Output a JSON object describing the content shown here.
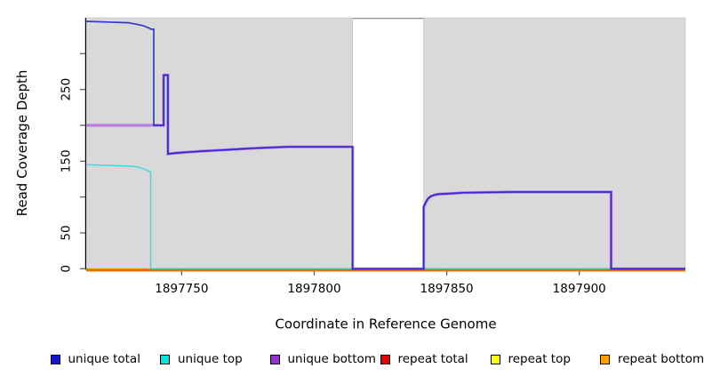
{
  "figure": {
    "xlabel": "Coordinate in Reference Genome",
    "ylabel": "Read Coverage Depth"
  },
  "legend": {
    "items": [
      {
        "label": "unique total",
        "color": "#1414CC"
      },
      {
        "label": "unique top",
        "color": "#00E5E5"
      },
      {
        "label": "unique bottom",
        "color": "#9A30D2"
      },
      {
        "label": "repeat total",
        "color": "#EE0000"
      },
      {
        "label": "repeat top",
        "color": "#FFFF00"
      },
      {
        "label": "repeat bottom",
        "color": "#FFA000"
      }
    ]
  },
  "chart_data": {
    "type": "line",
    "title": "",
    "xlabel": "Coordinate in Reference Genome",
    "ylabel": "Read Coverage Depth",
    "xlim": [
      1897714,
      1897940
    ],
    "ylim": [
      0,
      350
    ],
    "grid": false,
    "legend_position": "bottom",
    "x_ticks": [
      1897750,
      1897800,
      1897850,
      1897900
    ],
    "x_tick_labels": [
      "1897750",
      "1897800",
      "1897850",
      "1897900"
    ],
    "y_ticks": [
      0,
      50,
      100,
      150,
      200,
      250,
      300
    ],
    "y_tick_labels": [
      "0",
      "50",
      "",
      "150",
      "",
      "250",
      ""
    ],
    "background_regions": [
      {
        "x0": 1897714,
        "x1": 1897814.5,
        "color": "#d9d9d9"
      },
      {
        "x0": 1897841.3,
        "x1": 1897940,
        "color": "#d9d9d9"
      }
    ],
    "gap_region": {
      "x0": 1897814.5,
      "x1": 1897841.3,
      "color": "#ffffff",
      "top_border_color": "#8a8a8a"
    },
    "series": [
      {
        "name": "repeat total",
        "color": "#DD0000",
        "opacity": 1,
        "width": 1.3,
        "dy": 2.4,
        "points": [
          [
            1897714,
            0
          ],
          [
            1897940,
            0
          ]
        ]
      },
      {
        "name": "repeat top",
        "color": "#FFFF00",
        "opacity": 0.45,
        "width": 1.3,
        "dy": 2.4,
        "points": [
          [
            1897714,
            0
          ],
          [
            1897940,
            0
          ]
        ]
      },
      {
        "name": "repeat bottom",
        "color": "#FF8C00",
        "opacity": 1,
        "width": 1.7,
        "dy": 0.4,
        "points": [
          [
            1897714,
            0
          ],
          [
            1897940,
            0
          ]
        ]
      },
      {
        "name": "unique top",
        "color": "#00DDE0",
        "opacity": 0.72,
        "width": 1.5,
        "dy": 0,
        "points": [
          [
            1897714,
            145
          ],
          [
            1897724,
            144
          ],
          [
            1897731,
            143
          ],
          [
            1897733.5,
            142
          ],
          [
            1897735,
            140
          ],
          [
            1897736.5,
            138
          ],
          [
            1897737.5,
            136
          ],
          [
            1897738.3,
            135
          ],
          [
            1897738.3,
            0
          ],
          [
            1897940,
            0
          ]
        ]
      },
      {
        "name": "unique bottom",
        "color": "#9A20E8",
        "opacity": 0.5,
        "width": 3.2,
        "dy": 0,
        "points": [
          [
            1897714,
            200
          ],
          [
            1897739.5,
            200
          ],
          [
            1897743.2,
            200
          ],
          [
            1897743.2,
            270
          ],
          [
            1897744.8,
            270
          ],
          [
            1897744.8,
            160
          ],
          [
            1897747,
            161
          ],
          [
            1897750,
            162
          ],
          [
            1897754,
            163
          ],
          [
            1897758,
            164
          ],
          [
            1897763,
            165
          ],
          [
            1897768,
            166
          ],
          [
            1897772,
            167
          ],
          [
            1897777,
            168
          ],
          [
            1897783,
            169
          ],
          [
            1897790,
            170
          ],
          [
            1897814.5,
            170
          ],
          [
            1897814.5,
            0
          ],
          [
            1897841.3,
            0
          ],
          [
            1897841.3,
            86
          ],
          [
            1897841.8,
            90
          ],
          [
            1897842.3,
            94
          ],
          [
            1897843,
            98
          ],
          [
            1897844,
            101
          ],
          [
            1897845.5,
            103
          ],
          [
            1897847,
            104
          ],
          [
            1897852,
            105
          ],
          [
            1897856,
            106
          ],
          [
            1897874,
            107
          ],
          [
            1897912,
            107
          ],
          [
            1897912,
            0
          ],
          [
            1897940,
            0
          ]
        ]
      },
      {
        "name": "unique total",
        "color": "#2020CC",
        "opacity": 0.88,
        "width": 1.7,
        "dy": 0,
        "points": [
          [
            1897714,
            345
          ],
          [
            1897722,
            344
          ],
          [
            1897730,
            343
          ],
          [
            1897733,
            341
          ],
          [
            1897735.5,
            339
          ],
          [
            1897737.5,
            336
          ],
          [
            1897738.5,
            334
          ],
          [
            1897739.5,
            334
          ],
          [
            1897739.5,
            200
          ],
          [
            1897743.2,
            200
          ],
          [
            1897743.2,
            270
          ],
          [
            1897744.8,
            270
          ],
          [
            1897744.8,
            160
          ],
          [
            1897747,
            161
          ],
          [
            1897750,
            162
          ],
          [
            1897754,
            163
          ],
          [
            1897758,
            164
          ],
          [
            1897763,
            165
          ],
          [
            1897768,
            166
          ],
          [
            1897772,
            167
          ],
          [
            1897777,
            168
          ],
          [
            1897783,
            169
          ],
          [
            1897790,
            170
          ],
          [
            1897814.5,
            170
          ],
          [
            1897814.5,
            0
          ],
          [
            1897841.3,
            0
          ],
          [
            1897841.3,
            86
          ],
          [
            1897841.8,
            90
          ],
          [
            1897842.3,
            94
          ],
          [
            1897843,
            98
          ],
          [
            1897844,
            101
          ],
          [
            1897845.5,
            103
          ],
          [
            1897847,
            104
          ],
          [
            1897852,
            105
          ],
          [
            1897856,
            106
          ],
          [
            1897874,
            107
          ],
          [
            1897912,
            107
          ],
          [
            1897912,
            0
          ],
          [
            1897940,
            0
          ]
        ]
      }
    ]
  }
}
